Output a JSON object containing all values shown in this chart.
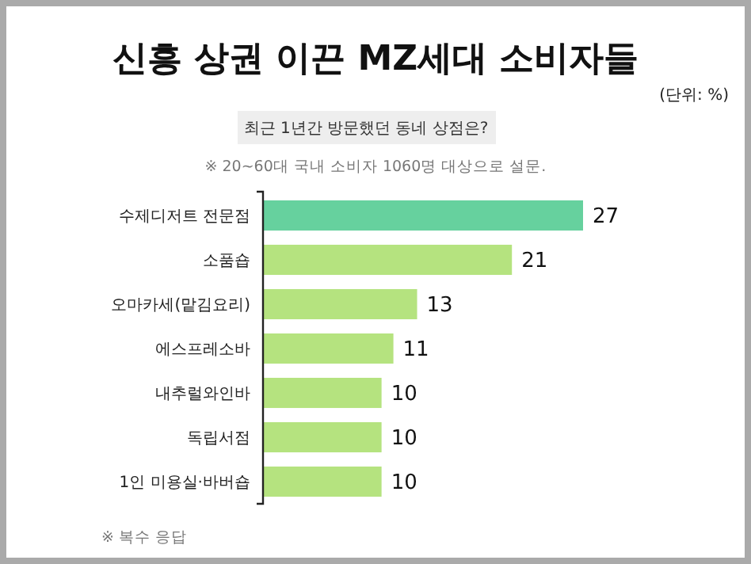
{
  "chart_data": {
    "type": "bar",
    "orientation": "horizontal",
    "title": "신흥 상권 이끈 MZ세대 소비자들",
    "subtitle": "최근 1년간 방문했던 동네 상점은?",
    "annotations": [
      "(단위: %)",
      "※ 20~60대 국내 소비자 1060명 대상으로 설문.",
      "※ 복수 응답"
    ],
    "categories": [
      "수제디저트 전문점",
      "소품숍",
      "오마카세(맡김요리)",
      "에스프레소바",
      "내추럴와인바",
      "독립서점",
      "1인 미용실·바버숍"
    ],
    "values": [
      27,
      21,
      13,
      11,
      10,
      10,
      10
    ],
    "colors": [
      "#66d19e",
      "#b5e37f",
      "#b5e37f",
      "#b5e37f",
      "#b5e37f",
      "#b5e37f",
      "#b5e37f"
    ],
    "data_labels": true
  }
}
